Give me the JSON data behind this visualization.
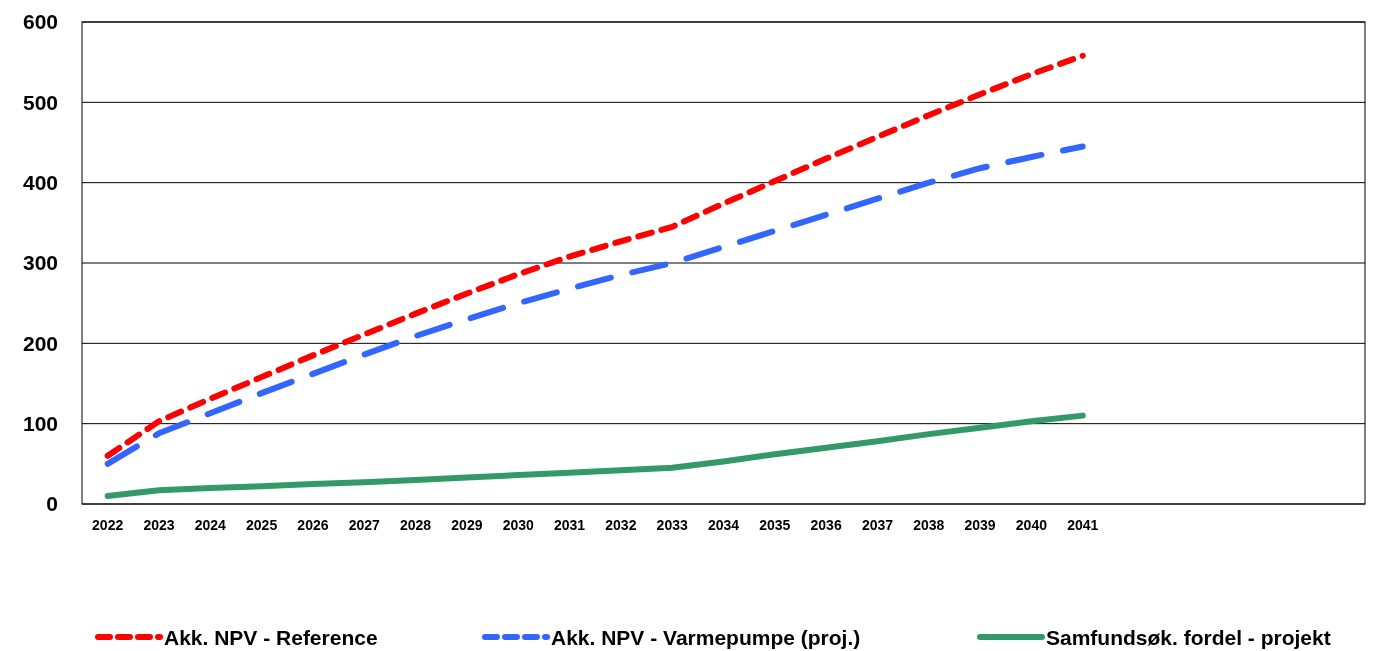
{
  "chart_data": {
    "type": "line",
    "categories": [
      "2022",
      "2023",
      "2024",
      "2025",
      "2026",
      "2027",
      "2028",
      "2029",
      "2030",
      "2031",
      "2032",
      "2033",
      "2034",
      "2035",
      "2036",
      "2037",
      "2038",
      "2039",
      "2040",
      "2041",
      null,
      null,
      null,
      null,
      null
    ],
    "ylim": [
      0,
      600
    ],
    "yticks": [
      0,
      100,
      200,
      300,
      400,
      500,
      600
    ],
    "grid": "y",
    "legend": "bottom",
    "marker": "none",
    "series": [
      {
        "name": "Akk. NPV - Reference",
        "color": "#ff0000",
        "line_style": "dashed",
        "values": [
          60,
          103,
          131,
          158,
          185,
          211,
          237,
          262,
          286,
          308,
          327,
          345,
          374,
          402,
          430,
          457,
          484,
          510,
          535,
          558,
          null,
          null,
          null,
          null,
          null
        ]
      },
      {
        "name": "Akk. NPV - Varmepumpe (proj.)",
        "color": "#3366ff",
        "line_style": "long-dashed",
        "values": [
          50,
          88,
          113,
          138,
          162,
          186,
          209,
          230,
          250,
          268,
          285,
          300,
          320,
          340,
          360,
          380,
          400,
          418,
          432,
          445,
          null,
          null,
          null,
          null,
          null
        ]
      },
      {
        "name": "Samfundsøk. fordel - projekt",
        "color": "#339966",
        "line_style": "solid",
        "values": [
          10,
          17,
          20,
          22,
          25,
          27,
          30,
          33,
          36,
          39,
          42,
          45,
          53,
          62,
          70,
          78,
          87,
          95,
          103,
          110,
          null,
          null,
          null,
          null,
          null
        ]
      }
    ]
  }
}
